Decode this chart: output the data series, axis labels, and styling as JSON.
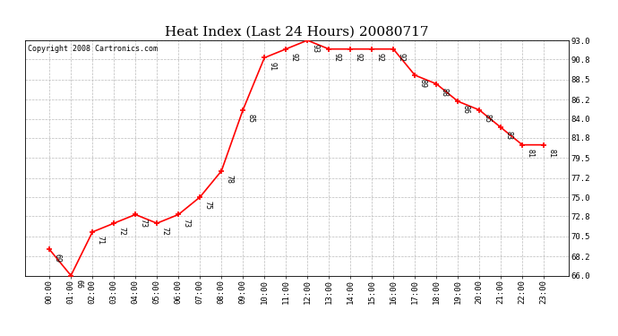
{
  "title": "Heat Index (Last 24 Hours) 20080717",
  "copyright": "Copyright 2008 Cartronics.com",
  "hours": [
    "00:00",
    "01:00",
    "02:00",
    "03:00",
    "04:00",
    "05:00",
    "06:00",
    "07:00",
    "08:00",
    "09:00",
    "10:00",
    "11:00",
    "12:00",
    "13:00",
    "14:00",
    "15:00",
    "16:00",
    "17:00",
    "18:00",
    "19:00",
    "20:00",
    "21:00",
    "22:00",
    "23:00"
  ],
  "values": [
    69,
    66,
    71,
    72,
    73,
    72,
    73,
    75,
    78,
    85,
    91,
    92,
    93,
    92,
    92,
    92,
    92,
    89,
    88,
    86,
    85,
    83,
    81,
    81
  ],
  "ylim_min": 66.0,
  "ylim_max": 93.0,
  "yticks": [
    66.0,
    68.2,
    70.5,
    72.8,
    75.0,
    77.2,
    79.5,
    81.8,
    84.0,
    86.2,
    88.5,
    90.8,
    93.0
  ],
  "line_color": "red",
  "marker_color": "red",
  "bg_color": "white",
  "grid_color": "#bbbbbb",
  "text_color": "black",
  "title_fontsize": 11,
  "label_fontsize": 6.5,
  "annotation_fontsize": 6,
  "copyright_fontsize": 6
}
